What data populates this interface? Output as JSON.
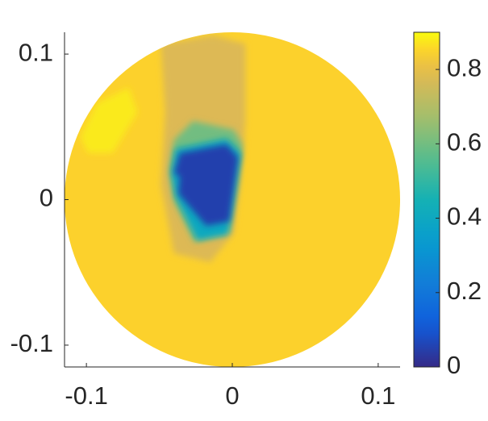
{
  "chart_data": {
    "type": "field",
    "colormap": "parula",
    "xlim": [
      -0.115,
      0.115
    ],
    "ylim": [
      -0.115,
      0.115
    ],
    "xticks": [
      -0.1,
      0,
      0.1
    ],
    "yticks": [
      -0.1,
      0,
      0.1
    ],
    "domain_radius": 0.115,
    "background_value": 0.85,
    "clim": [
      0,
      0.9
    ],
    "colorbar_ticks": [
      0,
      0.2,
      0.4,
      0.6,
      0.8
    ],
    "regions": [
      {
        "value": 0.88,
        "x": [
          -0.104,
          -0.093,
          -0.071,
          -0.065,
          -0.082,
          -0.099
        ],
        "y": [
          0.043,
          0.066,
          0.077,
          0.06,
          0.032,
          0.032
        ]
      },
      {
        "value": 0.78,
        "x": [
          -0.049,
          -0.013,
          0.009,
          0.009,
          0.007,
          0.001,
          -0.015,
          -0.04,
          -0.049,
          -0.046
        ],
        "y": [
          0.107,
          0.113,
          0.107,
          0.054,
          0.027,
          -0.023,
          -0.043,
          -0.037,
          0.01,
          0.06
        ]
      },
      {
        "value": 0.6,
        "x": [
          -0.04,
          -0.027,
          0.001,
          0.007,
          0.004,
          -0.002,
          -0.026,
          -0.04,
          -0.043
        ],
        "y": [
          0.041,
          0.054,
          0.048,
          0.038,
          0.01,
          -0.023,
          -0.029,
          -0.001,
          0.021
        ]
      },
      {
        "value": 0.4,
        "x": [
          -0.039,
          -0.004,
          0.006,
          0.002,
          -0.003,
          -0.024,
          -0.039,
          -0.042
        ],
        "y": [
          0.035,
          0.042,
          0.032,
          0.01,
          -0.024,
          -0.028,
          0.002,
          0.018
        ]
      },
      {
        "value": 0.05,
        "x": [
          -0.036,
          -0.004,
          0.004,
          -0.002,
          -0.018,
          -0.037,
          -0.036,
          -0.04
        ],
        "y": [
          0.032,
          0.038,
          0.029,
          -0.015,
          -0.018,
          0.004,
          0.016,
          0.018
        ]
      }
    ]
  }
}
